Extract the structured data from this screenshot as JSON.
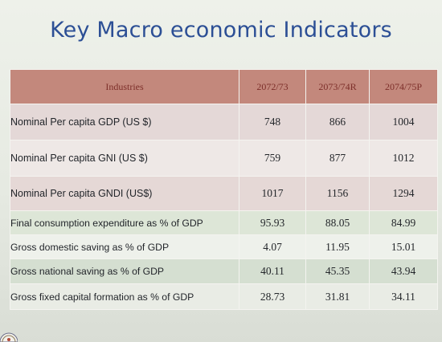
{
  "title": "Key Macro economic Indicators",
  "table": {
    "headers": [
      "Industries",
      "2072/73",
      "2073/74R",
      "2074/75P"
    ],
    "rows": [
      {
        "label": "Nominal Per capita GDP (US $)",
        "values": [
          "748",
          "866",
          "1004"
        ]
      },
      {
        "label": "Nominal Per capita GNI (US $)",
        "values": [
          "759",
          "877",
          "1012"
        ]
      },
      {
        "label": "Nominal Per capita GNDI (US$)",
        "values": [
          "1017",
          "1156",
          "1294"
        ]
      },
      {
        "label": "Final consumption expenditure as % of GDP",
        "values": [
          "95.93",
          "88.05",
          "84.99"
        ]
      },
      {
        "label": "Gross domestic saving as % of GDP",
        "values": [
          "4.07",
          "11.95",
          "15.01"
        ]
      },
      {
        "label": "Gross national saving as % of GDP",
        "values": [
          "40.11",
          "45.35",
          "43.94"
        ]
      },
      {
        "label": "Gross fixed capital formation as % of GDP",
        "values": [
          "28.73",
          "31.81",
          "34.11"
        ]
      }
    ]
  },
  "colors": {
    "title": "#2c4f95",
    "header_bg": "#c3887c",
    "header_text": "#7d2f2a"
  },
  "icons": {
    "corner_logo": "emblem-seal"
  }
}
